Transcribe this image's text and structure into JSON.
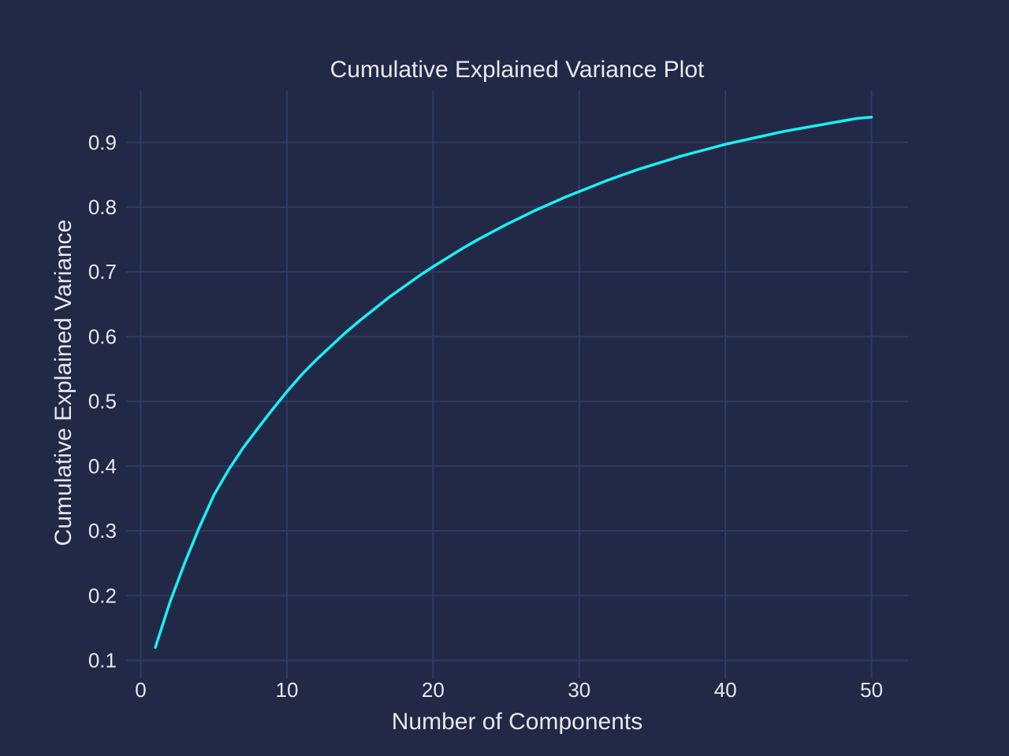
{
  "chart_data": {
    "type": "line",
    "title": "Cumulative Explained Variance Plot",
    "xlabel": "Number of Components",
    "ylabel": "Cumulative Explained Variance",
    "xlim": [
      -1,
      52.5
    ],
    "ylim": [
      0.08,
      0.98
    ],
    "x_ticks": [
      0,
      10,
      20,
      30,
      40,
      50
    ],
    "y_ticks": [
      0.1,
      0.2,
      0.3,
      0.4,
      0.5,
      0.6,
      0.7,
      0.8,
      0.9
    ],
    "x_tick_labels": [
      "0",
      "10",
      "20",
      "30",
      "40",
      "50"
    ],
    "y_tick_labels": [
      "0.1",
      "0.2",
      "0.3",
      "0.4",
      "0.5",
      "0.6",
      "0.7",
      "0.8",
      "0.9"
    ],
    "grid": true,
    "colors": {
      "background": "#222946",
      "grid": "#2e3a68",
      "line": "#19f0f5",
      "text": "#e6e8f0"
    },
    "series": [
      {
        "x": [
          1,
          2,
          3,
          4,
          5,
          6,
          7,
          8,
          9,
          10,
          11,
          12,
          13,
          14,
          15,
          16,
          17,
          18,
          19,
          20,
          21,
          22,
          23,
          24,
          25,
          26,
          27,
          28,
          29,
          30,
          31,
          32,
          33,
          34,
          35,
          36,
          37,
          38,
          39,
          40,
          41,
          42,
          43,
          44,
          45,
          46,
          47,
          48,
          49,
          50
        ],
        "values": [
          0.12,
          0.19,
          0.25,
          0.305,
          0.355,
          0.394,
          0.428,
          0.458,
          0.487,
          0.515,
          0.541,
          0.564,
          0.585,
          0.606,
          0.625,
          0.643,
          0.661,
          0.677,
          0.693,
          0.708,
          0.722,
          0.736,
          0.749,
          0.761,
          0.773,
          0.784,
          0.795,
          0.805,
          0.815,
          0.824,
          0.833,
          0.842,
          0.85,
          0.858,
          0.865,
          0.872,
          0.879,
          0.885,
          0.891,
          0.897,
          0.902,
          0.907,
          0.912,
          0.917,
          0.921,
          0.925,
          0.929,
          0.933,
          0.937,
          0.939
        ]
      }
    ]
  }
}
